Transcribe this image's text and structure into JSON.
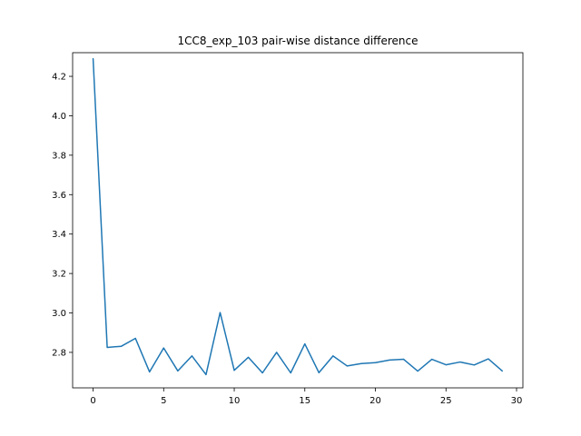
{
  "chart_data": {
    "type": "line",
    "title": "1CC8_exp_103 pair-wise distance difference",
    "xlabel": "",
    "ylabel": "",
    "xlim": [
      -1.45,
      30.45
    ],
    "ylim": [
      2.62,
      4.32
    ],
    "xticks": [
      0,
      5,
      10,
      15,
      20,
      25,
      30
    ],
    "yticks": [
      2.8,
      3.0,
      3.2,
      3.4,
      3.6,
      3.8,
      4.0,
      4.2
    ],
    "grid": false,
    "series": [
      {
        "color": "#1f77b4",
        "x": [
          0,
          1,
          2,
          3,
          4,
          5,
          6,
          7,
          8,
          9,
          10,
          11,
          12,
          13,
          14,
          15,
          16,
          17,
          18,
          19,
          20,
          21,
          22,
          23,
          24,
          25,
          26,
          27,
          28,
          29
        ],
        "y": [
          4.29,
          2.825,
          2.831,
          2.871,
          2.701,
          2.822,
          2.706,
          2.782,
          2.687,
          3.002,
          2.709,
          2.775,
          2.696,
          2.8,
          2.696,
          2.843,
          2.697,
          2.782,
          2.731,
          2.743,
          2.748,
          2.761,
          2.765,
          2.705,
          2.765,
          2.737,
          2.751,
          2.736,
          2.767,
          2.705
        ]
      }
    ]
  }
}
